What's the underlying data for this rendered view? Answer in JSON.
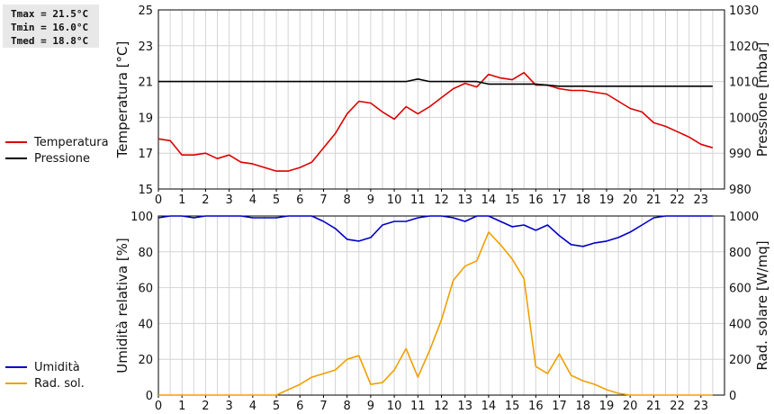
{
  "stats": {
    "tmax": "Tmax = 21.5°C",
    "tmin": "Tmin = 16.0°C",
    "tmed": "Tmed = 18.8°C"
  },
  "chart_data": [
    {
      "type": "line",
      "ylabel": "Temperatura [°C]",
      "y2label": "Pressione [mbar]",
      "ylim": [
        15,
        25
      ],
      "yticks": [
        15,
        17,
        19,
        21,
        23,
        25
      ],
      "y2lim": [
        980,
        1030
      ],
      "y2ticks": [
        980,
        990,
        1000,
        1010,
        1020,
        1030
      ],
      "xlim": [
        0,
        24
      ],
      "xticks": [
        0,
        1,
        2,
        3,
        4,
        5,
        6,
        7,
        8,
        9,
        10,
        11,
        12,
        13,
        14,
        15,
        16,
        17,
        18,
        19,
        20,
        21,
        22,
        23
      ],
      "grid": true,
      "series": [
        {
          "name": "Temperatura",
          "color": "#dd0000",
          "axis": "left",
          "x": [
            0,
            0.5,
            1,
            1.5,
            2,
            2.5,
            3,
            3.5,
            4,
            4.5,
            5,
            5.5,
            6,
            6.5,
            7,
            7.5,
            8,
            8.5,
            9,
            9.5,
            10,
            10.5,
            11,
            11.5,
            12,
            12.5,
            13,
            13.5,
            14,
            14.5,
            15,
            15.5,
            16,
            16.5,
            17,
            17.5,
            18,
            18.5,
            19,
            19.5,
            20,
            20.5,
            21,
            21.5,
            22,
            22.5,
            23,
            23.5
          ],
          "y": [
            17.8,
            17.7,
            16.9,
            16.9,
            17.0,
            16.7,
            16.9,
            16.5,
            16.4,
            16.2,
            16.0,
            16.0,
            16.2,
            16.5,
            17.3,
            18.1,
            19.2,
            19.9,
            19.8,
            19.3,
            18.9,
            19.6,
            19.2,
            19.6,
            20.1,
            20.6,
            20.9,
            20.7,
            21.4,
            21.2,
            21.1,
            21.5,
            20.8,
            20.8,
            20.6,
            20.5,
            20.5,
            20.4,
            20.3,
            19.9,
            19.5,
            19.3,
            18.7,
            18.5,
            18.2,
            17.9,
            17.5,
            17.3
          ]
        },
        {
          "name": "Pressione",
          "color": "#000000",
          "axis": "right",
          "x": [
            0,
            10.5,
            11,
            11.5,
            12,
            13,
            13.5,
            14,
            16,
            17,
            18,
            20,
            23.5
          ],
          "y": [
            1010,
            1010,
            1010.7,
            1010,
            1010,
            1010,
            1010,
            1009.3,
            1009.3,
            1008.7,
            1008.7,
            1008.7,
            1008.7
          ]
        }
      ]
    },
    {
      "type": "line",
      "ylabel": "Umidità relativa [%]",
      "y2label": "Rad. solare [W/mq]",
      "ylim": [
        0,
        100
      ],
      "yticks": [
        0,
        20,
        40,
        60,
        80,
        100
      ],
      "y2lim": [
        0,
        1000
      ],
      "y2ticks": [
        0,
        200,
        400,
        600,
        800,
        1000
      ],
      "xlim": [
        0,
        24
      ],
      "xticks": [
        0,
        1,
        2,
        3,
        4,
        5,
        6,
        7,
        8,
        9,
        10,
        11,
        12,
        13,
        14,
        15,
        16,
        17,
        18,
        19,
        20,
        21,
        22,
        23
      ],
      "grid": true,
      "series": [
        {
          "name": "Umidità",
          "color": "#0000c8",
          "axis": "left",
          "x": [
            0,
            0.5,
            1,
            1.5,
            2,
            2.5,
            3,
            3.5,
            4,
            4.5,
            5,
            5.5,
            6,
            6.5,
            7,
            7.5,
            8,
            8.5,
            9,
            9.5,
            10,
            10.5,
            11,
            11.5,
            12,
            12.5,
            13,
            13.5,
            14,
            14.5,
            15,
            15.5,
            16,
            16.5,
            17,
            17.5,
            18,
            18.5,
            19,
            19.5,
            20,
            20.5,
            21,
            21.5,
            22,
            22.5,
            23,
            23.5
          ],
          "y": [
            99,
            100,
            100,
            99,
            100,
            100,
            100,
            100,
            99,
            99,
            99,
            100,
            100,
            100,
            97,
            93,
            87,
            86,
            88,
            95,
            97,
            97,
            99,
            100,
            100,
            99,
            97,
            100,
            100,
            97,
            94,
            95,
            92,
            95,
            89,
            84,
            83,
            85,
            86,
            88,
            91,
            95,
            99,
            100,
            100,
            100,
            100,
            100
          ]
        },
        {
          "name": "Rad. sol.",
          "color": "#f0a000",
          "axis": "right",
          "x": [
            0,
            0.5,
            1,
            1.5,
            2,
            2.5,
            3,
            3.5,
            4,
            4.5,
            5,
            5.5,
            6,
            6.5,
            7,
            7.5,
            8,
            8.5,
            9,
            9.5,
            10,
            10.5,
            11,
            11.5,
            12,
            12.5,
            13,
            13.5,
            14,
            14.5,
            15,
            15.5,
            16,
            16.5,
            17,
            17.5,
            18,
            18.5,
            19,
            19.5,
            20,
            20.5,
            21,
            21.5,
            22,
            22.5,
            23,
            23.5
          ],
          "y": [
            0,
            0,
            0,
            0,
            0,
            0,
            0,
            0,
            0,
            0,
            0,
            30,
            60,
            100,
            120,
            140,
            200,
            220,
            60,
            70,
            140,
            260,
            100,
            250,
            420,
            640,
            720,
            750,
            910,
            840,
            760,
            650,
            160,
            120,
            230,
            110,
            80,
            60,
            30,
            10,
            0,
            0,
            0,
            0,
            0,
            0,
            0,
            0
          ]
        }
      ]
    }
  ]
}
